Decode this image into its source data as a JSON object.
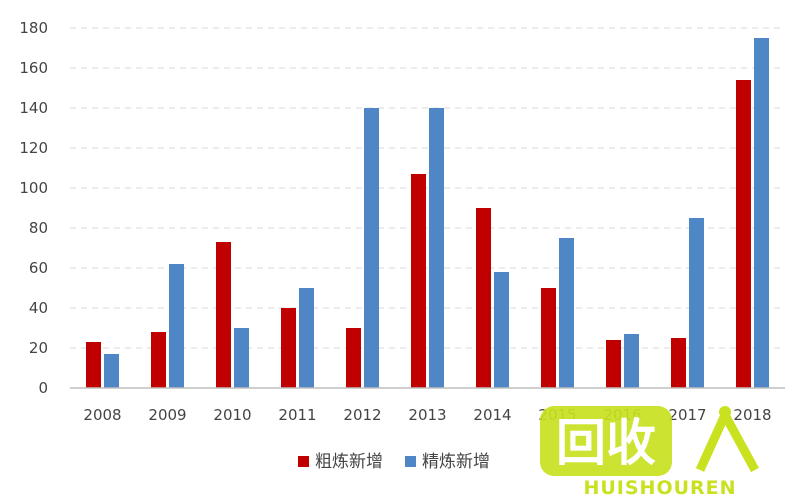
{
  "chart_data": {
    "type": "bar",
    "title": "",
    "xlabel": "",
    "ylabel": "",
    "categories": [
      "2008",
      "2009",
      "2010",
      "2011",
      "2012",
      "2013",
      "2014",
      "2015",
      "2016",
      "2017",
      "2018"
    ],
    "series": [
      {
        "name": "粗炼新增",
        "color": "#c00000",
        "values": [
          23,
          28,
          73,
          40,
          30,
          107,
          90,
          50,
          24,
          25,
          154
        ]
      },
      {
        "name": "精炼新增",
        "color": "#4f86c6",
        "values": [
          17,
          62,
          30,
          50,
          140,
          140,
          58,
          75,
          27,
          85,
          175
        ]
      }
    ],
    "ylim": [
      0,
      180
    ],
    "yticks": [
      0,
      20,
      40,
      60,
      80,
      100,
      120,
      140,
      160,
      180
    ],
    "grid": true,
    "legend_position": "bottom"
  },
  "watermark": {
    "main_text": "回收",
    "sub_text": "HUISHOUREN",
    "color": "#c9e11f"
  }
}
